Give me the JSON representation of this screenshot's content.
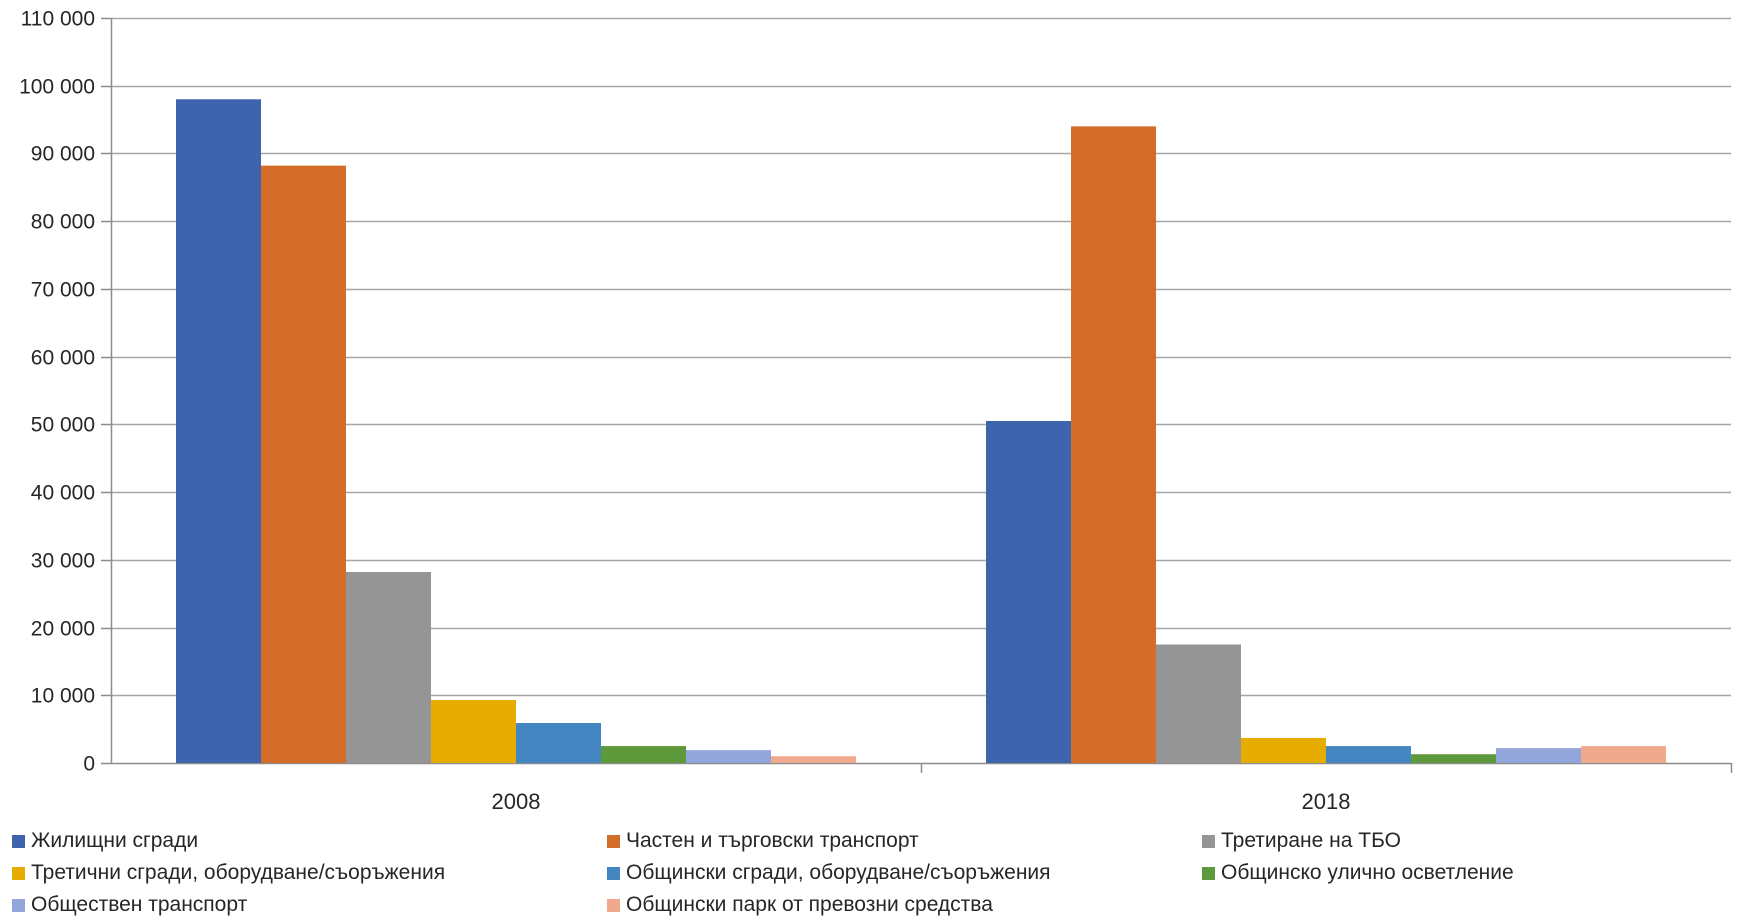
{
  "chart_data": {
    "type": "bar",
    "title": "",
    "xlabel": "",
    "ylabel": "",
    "categories": [
      "2008",
      "2018"
    ],
    "ylim": [
      0,
      110000
    ],
    "y_ticks": [
      "0",
      "10 000",
      "20 000",
      "30 000",
      "40 000",
      "50 000",
      "60 000",
      "70 000",
      "80 000",
      "90 000",
      "100 000",
      "110 000"
    ],
    "y_tick_values": [
      0,
      10000,
      20000,
      30000,
      40000,
      50000,
      60000,
      70000,
      80000,
      90000,
      100000,
      110000
    ],
    "grid": true,
    "legend_position": "bottom",
    "series": [
      {
        "name": "Жилищни сгради",
        "color": "#3d64ad",
        "values": [
          98000,
          50500
        ]
      },
      {
        "name": "Частен и търговски транспорт",
        "color": "#d56d2a",
        "values": [
          88200,
          94000
        ]
      },
      {
        "name": "Третиране на ТБО",
        "color": "#959595",
        "values": [
          28200,
          17500
        ]
      },
      {
        "name": "Третични сгради, оборудване/съоръжения",
        "color": "#e6ad00",
        "values": [
          9300,
          3700
        ]
      },
      {
        "name": "Общински сгради, оборудване/съоръжения",
        "color": "#4486c2",
        "values": [
          5900,
          2500
        ]
      },
      {
        "name": "Общинско улично осветление",
        "color": "#5e9a3c",
        "values": [
          2500,
          1300
        ]
      },
      {
        "name": "Обществен транспорт",
        "color": "#92a6dc",
        "values": [
          1900,
          2200
        ]
      },
      {
        "name": "Общински парк от превозни средства",
        "color": "#f1a98d",
        "values": [
          1000,
          2500
        ]
      }
    ]
  }
}
